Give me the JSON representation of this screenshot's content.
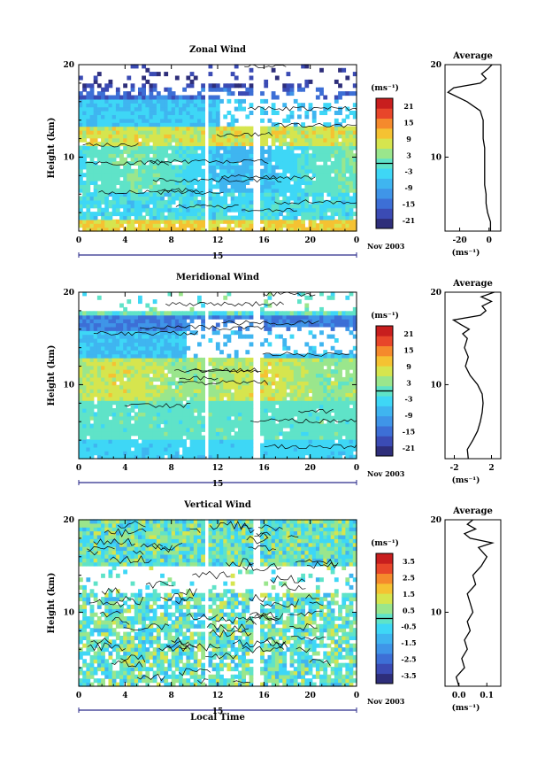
{
  "shared": {
    "xlabel": "Local Time",
    "date_label": "Nov 2003",
    "day_label": "15"
  },
  "colors": {
    "scale": [
      "#2e2e7a",
      "#3b4bb4",
      "#3d6fd6",
      "#3f95e8",
      "#3fb5f0",
      "#3ed7f6",
      "#5fe3c8",
      "#9ae68c",
      "#d6e54e",
      "#f5c232",
      "#f58a2c",
      "#e8462a",
      "#c81e1e"
    ]
  },
  "chart_data": [
    {
      "type": "heatmap",
      "title": "Zonal Wind",
      "ylabel": "Height (km)",
      "xlim": [
        0,
        24
      ],
      "ylim": [
        2,
        20
      ],
      "x_ticks": [
        "0",
        "4",
        "8",
        "12",
        "16",
        "20",
        "0"
      ],
      "y_ticks": [
        "10",
        "20"
      ],
      "colorbar": {
        "unit": "(ms⁻¹)",
        "ticks": [
          "21",
          "15",
          "9",
          "3",
          "-3",
          "-9",
          "-15",
          "-21"
        ],
        "range": [
          -24,
          24
        ]
      },
      "profile": {
        "title": "Average",
        "xlabel": "(ms⁻¹)",
        "x_ticks": [
          "-20",
          "0"
        ],
        "xlim": [
          -30,
          8
        ],
        "y_ticks": [
          "10",
          "20"
        ],
        "height_km": [
          2,
          3,
          4,
          5,
          6,
          7,
          8,
          9,
          10,
          11,
          12,
          13,
          14,
          15,
          16,
          17,
          17.5,
          18,
          18.5,
          19,
          19.5,
          20
        ],
        "values": [
          1,
          1,
          -1,
          -2,
          -2,
          -3,
          -3,
          -3,
          -3,
          -3,
          -4,
          -4,
          -4,
          -6,
          -15,
          -28,
          -24,
          -6,
          -2,
          -5,
          -1,
          2
        ]
      }
    },
    {
      "type": "heatmap",
      "title": "Meridional Wind",
      "ylabel": "Height (km)",
      "xlim": [
        0,
        24
      ],
      "ylim": [
        2,
        20
      ],
      "x_ticks": [
        "0",
        "4",
        "8",
        "12",
        "16",
        "20",
        "0"
      ],
      "y_ticks": [
        "10",
        "20"
      ],
      "colorbar": {
        "unit": "(ms⁻¹)",
        "ticks": [
          "21",
          "15",
          "9",
          "3",
          "-3",
          "-9",
          "-15",
          "-21"
        ],
        "range": [
          -24,
          24
        ]
      },
      "profile": {
        "title": "Average",
        "xlabel": "(ms⁻¹)",
        "x_ticks": [
          "-2",
          "2"
        ],
        "xlim": [
          -3,
          3
        ],
        "y_ticks": [
          "10",
          "20"
        ],
        "height_km": [
          2,
          3,
          4,
          5,
          6,
          7,
          8,
          9,
          10,
          11,
          12,
          13,
          14,
          15,
          15.5,
          16,
          16.5,
          17,
          17.5,
          18,
          18.5,
          19,
          19.5,
          20
        ],
        "values": [
          -0.5,
          -0.6,
          0,
          0.5,
          0.8,
          1.0,
          1.1,
          1.0,
          0.5,
          -0.3,
          -0.8,
          -0.5,
          -0.9,
          -0.6,
          -1.1,
          -0.4,
          -1.3,
          -2.1,
          0.8,
          1.4,
          1.0,
          2.0,
          0.9,
          2.3
        ]
      }
    },
    {
      "type": "heatmap",
      "title": "Vertical Wind",
      "ylabel": "Height (km)",
      "xlabel": "Local Time",
      "xlim": [
        0,
        24
      ],
      "ylim": [
        2,
        20
      ],
      "x_ticks": [
        "0",
        "4",
        "8",
        "12",
        "16",
        "20",
        "0"
      ],
      "y_ticks": [
        "10",
        "20"
      ],
      "colorbar": {
        "unit": "(ms⁻¹)",
        "ticks": [
          "3.5",
          "2.5",
          "1.5",
          "0.5",
          "-0.5",
          "-1.5",
          "-2.5",
          "-3.5"
        ],
        "range": [
          -4,
          4
        ]
      },
      "profile": {
        "title": "Average",
        "xlabel": "(ms⁻¹)",
        "x_ticks": [
          "0.0",
          "0.1"
        ],
        "xlim": [
          -0.05,
          0.15
        ],
        "y_ticks": [
          "10",
          "20"
        ],
        "height_km": [
          2,
          3,
          4,
          5,
          6,
          7,
          8,
          9,
          10,
          11,
          12,
          13,
          14,
          15,
          16,
          17,
          17.5,
          18,
          18.5,
          19,
          19.5,
          20
        ],
        "values": [
          0.0,
          -0.01,
          0.02,
          0.01,
          0.03,
          0.02,
          0.04,
          0.03,
          0.05,
          0.04,
          0.03,
          0.06,
          0.05,
          0.08,
          0.1,
          0.07,
          0.12,
          0.04,
          0.02,
          0.06,
          0.03,
          0.05
        ]
      }
    }
  ]
}
